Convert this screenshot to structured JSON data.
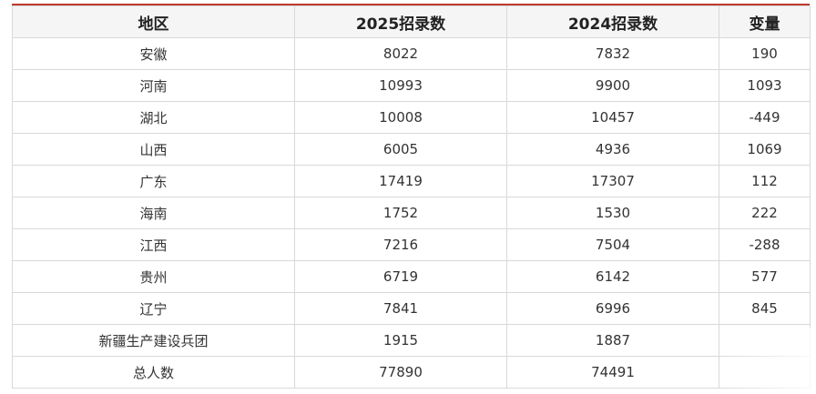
{
  "table": {
    "headers": [
      "地区",
      "2025招录数",
      "2024招录数",
      "变量"
    ],
    "rows": [
      [
        "安徽",
        "8022",
        "7832",
        "190"
      ],
      [
        "河南",
        "10993",
        "9900",
        "1093"
      ],
      [
        "湖北",
        "10008",
        "10457",
        "-449"
      ],
      [
        "山西",
        "6005",
        "4936",
        "1069"
      ],
      [
        "广东",
        "17419",
        "17307",
        "112"
      ],
      [
        "海南",
        "1752",
        "1530",
        "222"
      ],
      [
        "江西",
        "7216",
        "7504",
        "-288"
      ],
      [
        "贵州",
        "6719",
        "6142",
        "577"
      ],
      [
        "辽宁",
        "7841",
        "6996",
        "845"
      ],
      [
        "新疆生产建设兵团",
        "1915",
        "1887",
        ""
      ],
      [
        "总人数",
        "77890",
        "74491",
        ""
      ]
    ]
  },
  "colors": {
    "accent_line": "#c0392b",
    "header_bg": "#f5f5f5",
    "border": "#d9d9d9"
  }
}
